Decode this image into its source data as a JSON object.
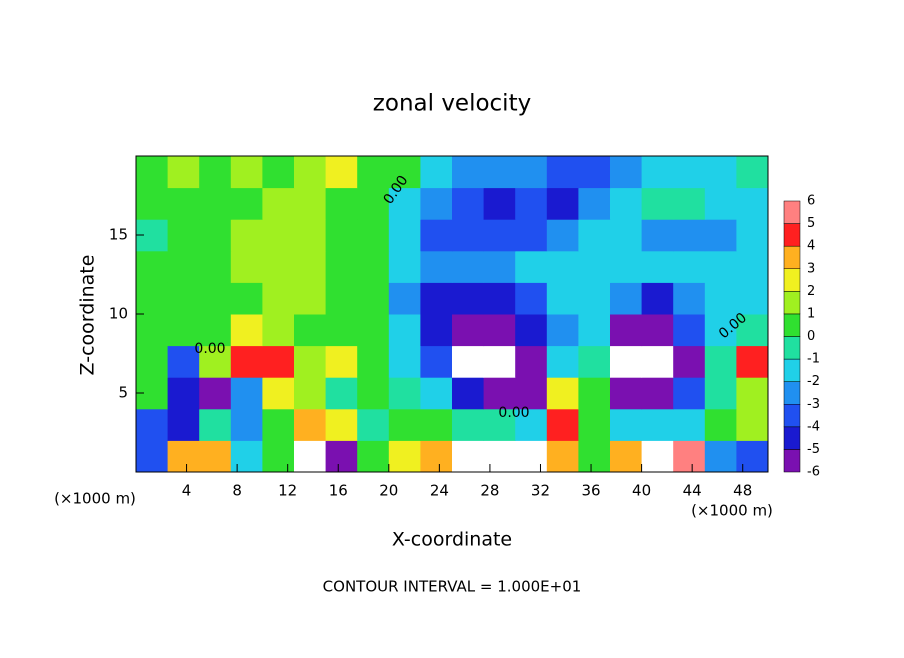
{
  "chart_data": {
    "type": "contour",
    "title": "zonal velocity",
    "xlabel": "X-coordinate",
    "ylabel": "Z-coordinate",
    "xunit": "(×1000 m)",
    "yunit": "(×1000 m)",
    "footer": "CONTOUR INTERVAL = 1.000E+01",
    "annotations": [
      "0.00",
      "0.00",
      "0.00",
      "0.00"
    ],
    "xlim": [
      0,
      50
    ],
    "ylim": [
      0,
      20
    ],
    "xticks": [
      4,
      8,
      12,
      16,
      20,
      24,
      28,
      32,
      36,
      40,
      44,
      48
    ],
    "yticks": [
      5,
      10,
      15
    ],
    "x": [
      1.25,
      3.75,
      6.25,
      8.75,
      11.25,
      13.75,
      16.25,
      18.75,
      21.25,
      23.75,
      26.25,
      28.75,
      31.25,
      33.75,
      36.25,
      38.75,
      41.25,
      43.75,
      46.25,
      48.75
    ],
    "y": [
      1,
      3,
      5,
      7,
      9,
      11,
      13,
      15,
      17,
      19
    ],
    "values": [
      [
        -3,
        4,
        4,
        -1,
        0.5,
        7,
        -5,
        1,
        3,
        4,
        7,
        7,
        7,
        4,
        1,
        4,
        7,
        6,
        -2,
        -3
      ],
      [
        -3,
        -4,
        0,
        -2,
        1,
        4,
        3,
        0,
        0.5,
        0.5,
        0,
        0,
        -1,
        5,
        1,
        -1,
        -1,
        -1,
        1,
        2
      ],
      [
        0.5,
        -4,
        -5,
        -2,
        3,
        2,
        0,
        1,
        0,
        -1,
        -4,
        -5,
        -5,
        3,
        1,
        -5,
        -5,
        -3,
        0,
        2
      ],
      [
        1,
        -3,
        2,
        5,
        5,
        2,
        3,
        1,
        -1,
        -3,
        7,
        7,
        -5,
        -1,
        0,
        7,
        7,
        -5,
        0,
        5
      ],
      [
        1,
        1,
        1,
        3,
        2,
        1,
        1,
        0.5,
        -1,
        -4,
        -6,
        -6,
        -4,
        -2,
        -1,
        -5,
        -6,
        -3,
        -1,
        0
      ],
      [
        1,
        1,
        1,
        1,
        1.5,
        1.5,
        1,
        0.5,
        -2,
        -4,
        -4,
        -4,
        -3,
        -1,
        -1,
        -2,
        -4,
        -2,
        -1,
        -1
      ],
      [
        0.5,
        1,
        1,
        1.5,
        2,
        2,
        1,
        0.5,
        -1,
        -2,
        -2,
        -2,
        -1,
        -1,
        -1.5,
        -1.5,
        -1.5,
        -1.5,
        -1.5,
        -1.5
      ],
      [
        0,
        1,
        1,
        1.5,
        2,
        2,
        1,
        0.5,
        -1,
        -3,
        -3,
        -3,
        -3,
        -2,
        -1.5,
        -1.5,
        -2,
        -2,
        -2,
        -1
      ],
      [
        1,
        1,
        1,
        1,
        1.5,
        1.5,
        1,
        0.5,
        -1,
        -2,
        -3,
        -4,
        -3,
        -4,
        -2,
        -1,
        -0.5,
        -0.5,
        -1,
        -1
      ],
      [
        1,
        2,
        1,
        2,
        1,
        2,
        3,
        1,
        0.5,
        -1,
        -2,
        -2,
        -2,
        -3,
        -3,
        -2,
        -1,
        -1,
        -1,
        0
      ]
    ],
    "colorbar": {
      "levels": [
        -6,
        -5,
        -4,
        -3,
        -2,
        -1,
        0,
        1,
        2,
        3,
        4,
        5,
        6
      ],
      "colors": [
        "#7a10b0",
        "#1a1ad0",
        "#2050f0",
        "#2090f0",
        "#20d0e8",
        "#20e0a0",
        "#30e030",
        "#a0f020",
        "#f0f020",
        "#ffb020",
        "#ff2020",
        "#ff8080"
      ]
    }
  }
}
